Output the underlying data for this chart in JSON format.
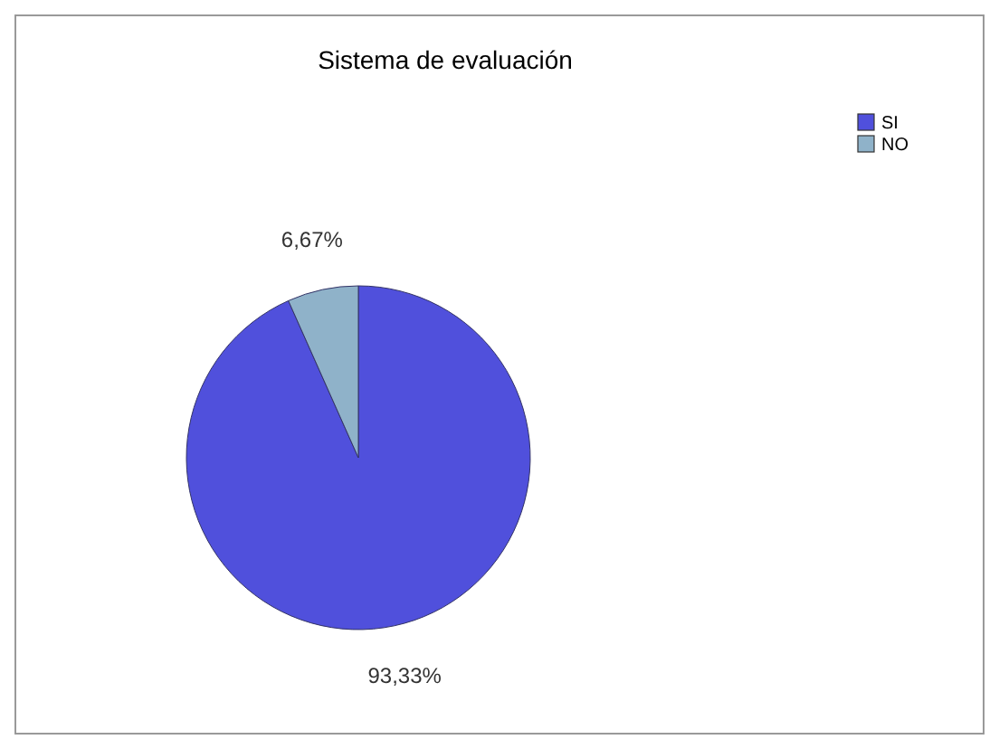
{
  "chart_data": {
    "type": "pie",
    "title": "Sistema de evaluación",
    "categories": [
      "SI",
      "NO"
    ],
    "values": [
      93.33,
      6.67
    ],
    "colors": [
      "#5050dc",
      "#8fb2c9"
    ],
    "value_labels": [
      "93,33%",
      "6,67%"
    ],
    "legend": "top right"
  }
}
